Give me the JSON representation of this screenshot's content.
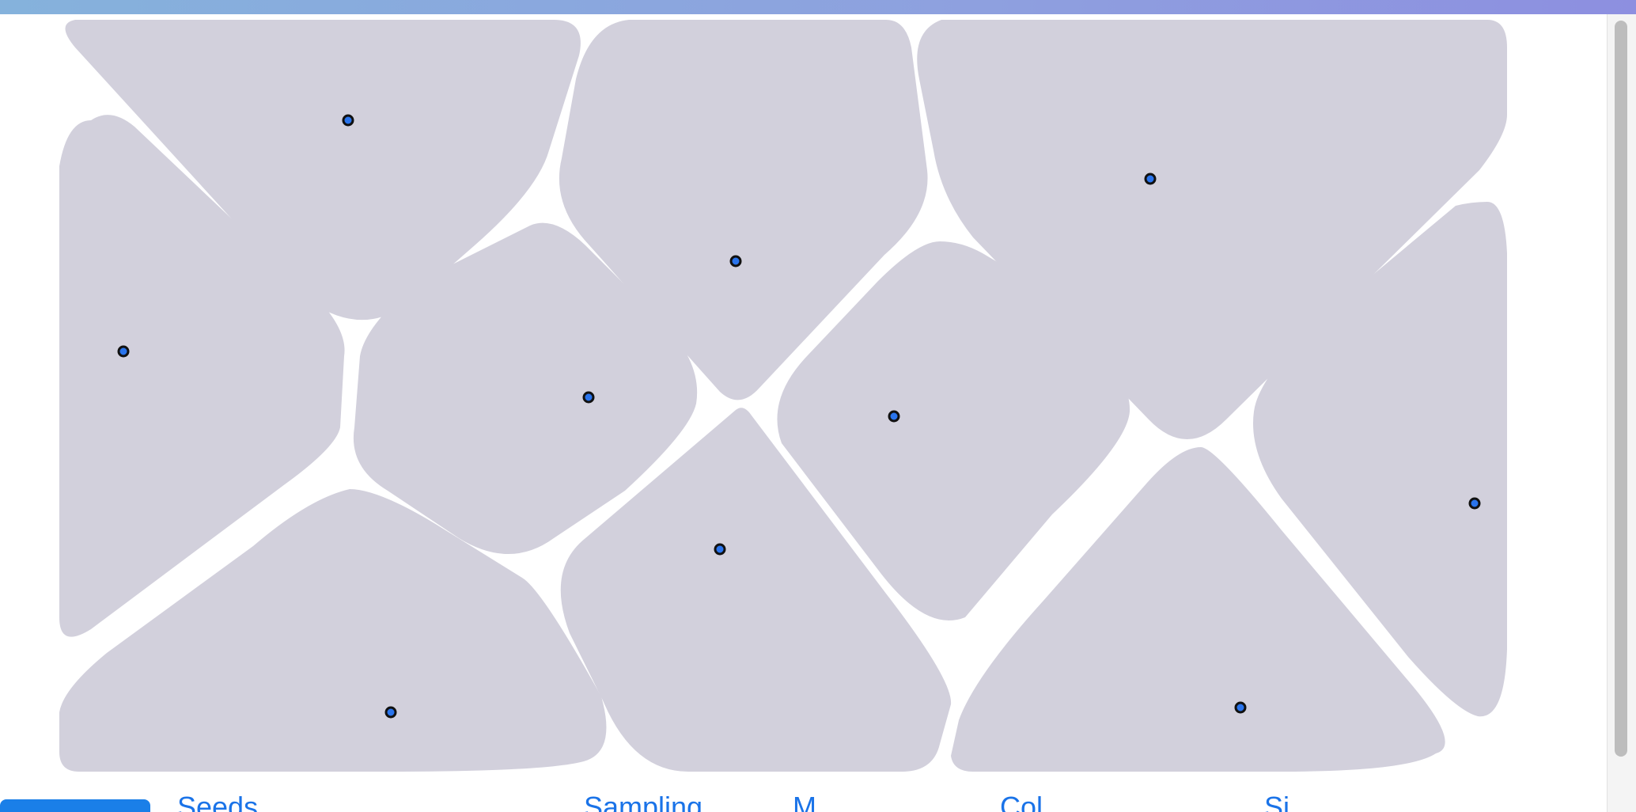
{
  "toolbar": {
    "tabs": [
      {
        "label": "Seeds"
      },
      {
        "label": "Sampling"
      },
      {
        "label": "M"
      },
      {
        "label": "Col"
      },
      {
        "label": "Si"
      }
    ]
  },
  "colors": {
    "cell_fill": "#d2d0dc",
    "seed_fill": "#2a74ec",
    "seed_stroke": "#111111",
    "accent": "#1a73e8"
  },
  "icons": [
    "seed-point-icon"
  ]
}
